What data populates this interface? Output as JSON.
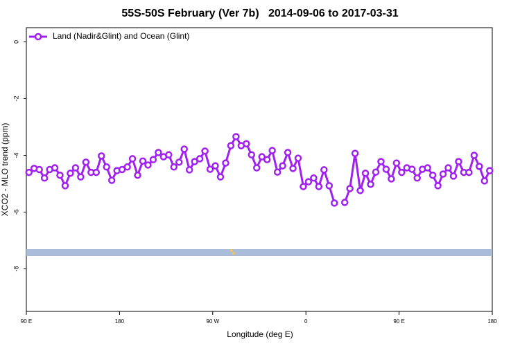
{
  "chart_data": {
    "type": "line",
    "title": "55S-50S February (Ver 7b)   2014-09-06 to 2017-03-31",
    "xlabel": "Longitude (deg E)",
    "ylabel": "XCO2 - MLO trend (ppm)",
    "x": [
      92.5,
      97.5,
      102.5,
      107.5,
      112.5,
      117.5,
      122.5,
      127.5,
      132.5,
      137.5,
      142.5,
      147.5,
      152.5,
      157.5,
      162.5,
      167.5,
      172.5,
      177.5,
      182.5,
      187.5,
      192.5,
      197.5,
      202.5,
      207.5,
      212.5,
      217.5,
      222.5,
      227.5,
      232.5,
      237.5,
      242.5,
      247.5,
      252.5,
      257.5,
      262.5,
      267.5,
      272.5,
      277.5,
      282.5,
      287.5,
      292.5,
      297.5,
      302.5,
      307.5,
      312.5,
      317.5,
      322.5,
      327.5,
      332.5,
      337.5,
      342.5,
      347.5,
      352.5,
      357.5,
      362.5,
      367.5,
      372.5,
      377.5,
      382.5,
      387.5,
      392.5,
      397.5,
      402.5,
      407.5,
      412.5,
      417.5,
      422.5,
      427.5,
      432.5,
      437.5,
      442.5,
      447.5,
      452.5,
      457.5,
      462.5,
      467.5,
      472.5,
      477.5,
      482.5,
      487.5,
      492.5,
      497.5,
      502.5,
      507.5,
      512.5,
      517.5,
      522.5,
      527.5,
      532.5,
      537.5
    ],
    "series": [
      {
        "name": "Land (Nadir&Glint) and Ocean (Glint)",
        "color": "#a020f0",
        "values": [
          -4.6,
          -4.46,
          -4.5,
          -4.8,
          -4.5,
          -4.44,
          -4.7,
          -5.07,
          -4.63,
          -4.44,
          -4.76,
          -4.24,
          -4.6,
          -4.6,
          -4.02,
          -4.41,
          -4.88,
          -4.54,
          -4.5,
          -4.41,
          -4.12,
          -4.7,
          -4.2,
          -4.34,
          -4.15,
          -3.9,
          -4.05,
          -3.98,
          -4.41,
          -4.24,
          -3.78,
          -4.51,
          -4.22,
          -4.12,
          -3.85,
          -4.49,
          -4.37,
          -4.76,
          -4.27,
          -3.66,
          -3.34,
          -3.66,
          -3.59,
          -3.98,
          -4.44,
          -4.05,
          -4.15,
          -3.83,
          -4.59,
          -4.37,
          -3.9,
          -4.46,
          -4.1,
          -5.1,
          -4.93,
          -4.8,
          -5.1,
          -4.51,
          -5.07,
          -5.68,
          null,
          -5.66,
          -5.17,
          -3.93,
          -5.24,
          -4.63,
          -5.02,
          -4.59,
          -4.22,
          -4.49,
          -4.83,
          -4.27,
          -4.6,
          -4.44,
          -4.49,
          -4.8,
          -4.49,
          -4.44,
          -4.7,
          -5.07,
          -4.66,
          -4.44,
          -4.73,
          -4.22,
          -4.6,
          -4.6,
          -4.0,
          -4.39,
          -4.9,
          -4.54
        ]
      }
    ],
    "xlim": [
      90,
      540
    ],
    "xticks": [
      {
        "value": 90,
        "label": "90 E"
      },
      180,
      {
        "value": 270,
        "label": "90 W"
      },
      0,
      {
        "value": 450,
        "label": "90 E"
      },
      180
    ],
    "ylim": [
      -9.5,
      0.5
    ],
    "yticks": [
      0,
      -2,
      -4,
      -6,
      -8
    ],
    "legend": "top-left"
  }
}
